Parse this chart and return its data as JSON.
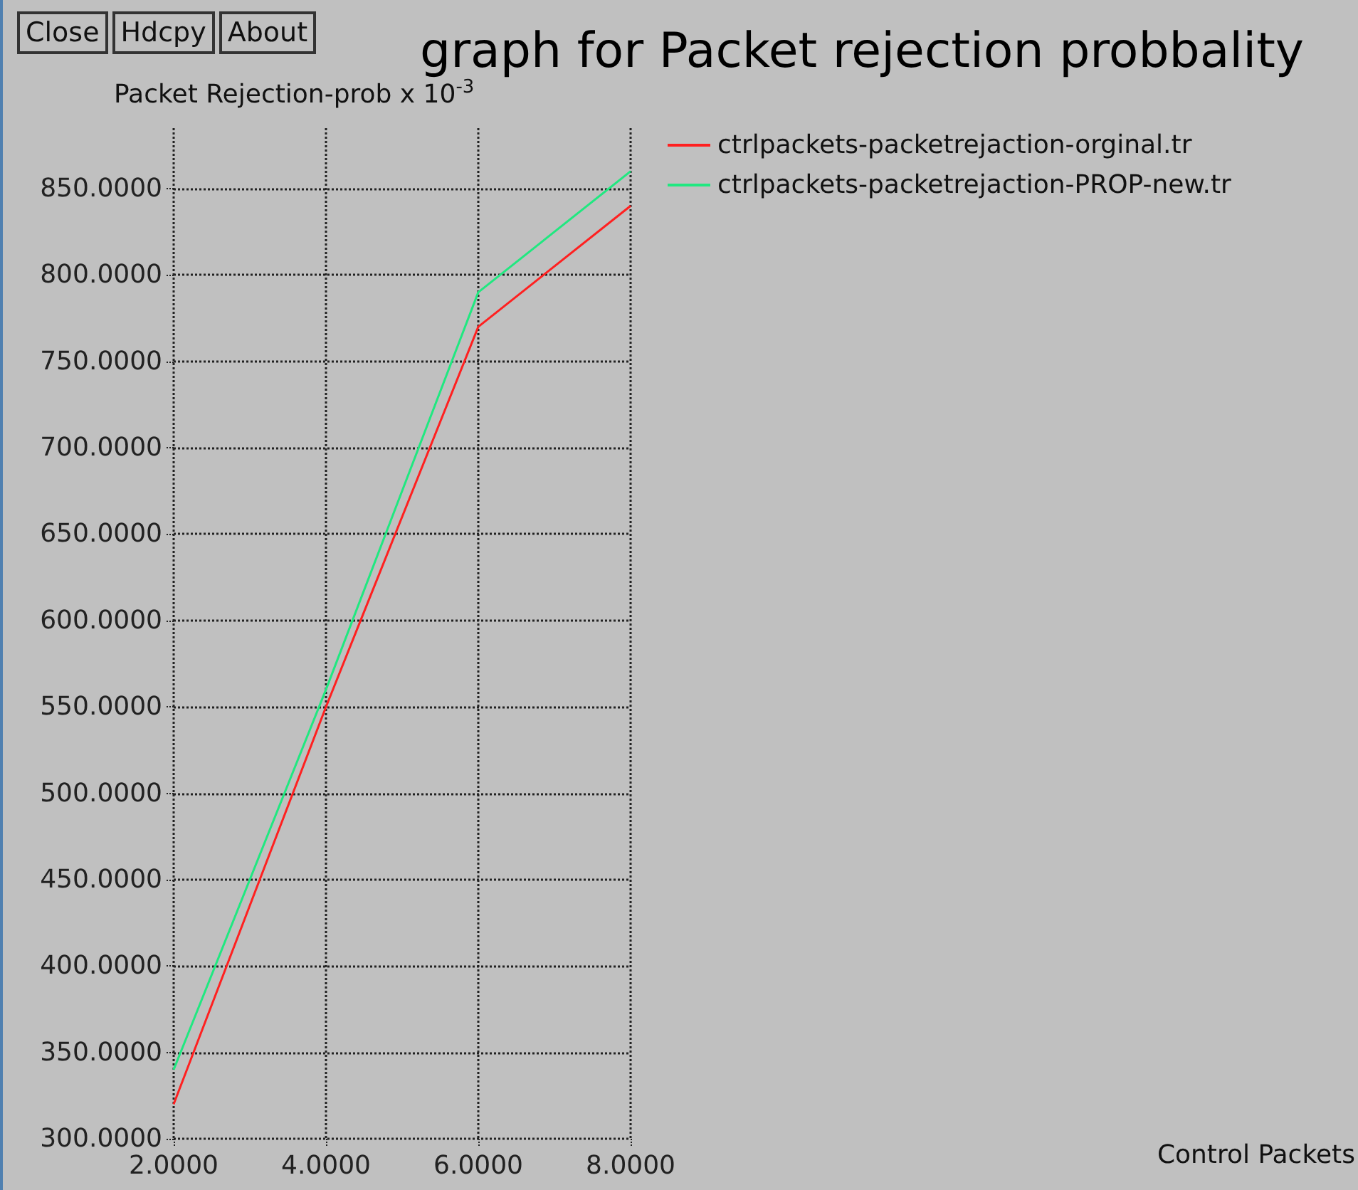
{
  "chart_data": {
    "type": "line",
    "title": "graph for Packet rejection probbality",
    "ylabel": "Packet Rejection-prob x 10$^{-3}$",
    "annotations": [
      "Close",
      "Hdcpy",
      "About",
      "Control Packets"
    ],
    "x": [
      2,
      4,
      6,
      8
    ],
    "series": [
      {
        "name": "ctrlpackets-packetrejaction-orginal.tr",
        "color": "#ff2020",
        "values": [
          320,
          550,
          770,
          840
        ]
      },
      {
        "name": "ctrlpackets-packetrejaction-PROP-new.tr",
        "color": "#20e880",
        "values": [
          340,
          560,
          790,
          860
        ]
      }
    ],
    "xlim": [
      2,
      8
    ],
    "xticks": [
      {
        "value": 2,
        "label": "2.0000"
      },
      {
        "value": 4,
        "label": "4.0000"
      },
      {
        "value": 6,
        "label": "6.0000"
      },
      {
        "value": 8,
        "label": "8.0000"
      }
    ],
    "ylim": [
      300,
      885
    ],
    "yticks": [
      {
        "value": 300,
        "label": "300.0000"
      },
      {
        "value": 350,
        "label": "350.0000"
      },
      {
        "value": 400,
        "label": "400.0000"
      },
      {
        "value": 450,
        "label": "450.0000"
      },
      {
        "value": 500,
        "label": "500.0000"
      },
      {
        "value": 550,
        "label": "550.0000"
      },
      {
        "value": 600,
        "label": "600.0000"
      },
      {
        "value": 650,
        "label": "650.0000"
      },
      {
        "value": 700,
        "label": "700.0000"
      },
      {
        "value": 750,
        "label": "750.0000"
      },
      {
        "value": 800,
        "label": "800.0000"
      },
      {
        "value": 850,
        "label": "850.0000"
      }
    ],
    "grid": true,
    "legend": "top right",
    "marker": "none",
    "line_style": "solid"
  }
}
